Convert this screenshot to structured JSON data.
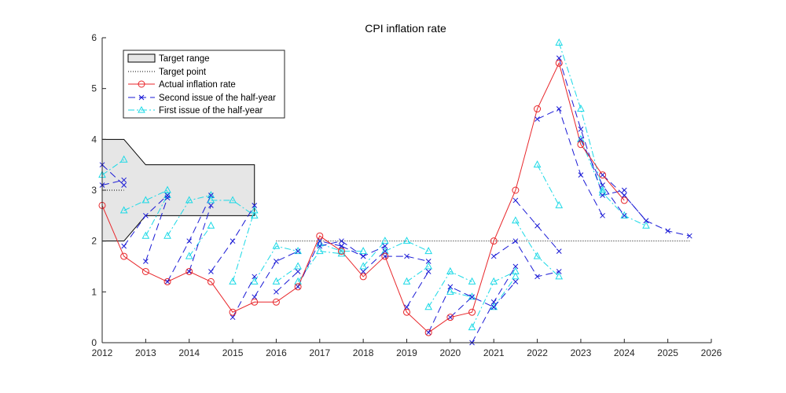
{
  "chart_data": {
    "type": "line",
    "title": "CPI inflation rate",
    "xlabel": "",
    "ylabel": "",
    "xlim": [
      2012,
      2026
    ],
    "ylim": [
      0,
      6
    ],
    "xticks": [
      "2012",
      "2013",
      "2014",
      "2015",
      "2016",
      "2017",
      "2018",
      "2019",
      "2020",
      "2021",
      "2022",
      "2023",
      "2024",
      "2025",
      "2026"
    ],
    "yticks": [
      "0",
      "1",
      "2",
      "3",
      "4",
      "5",
      "6"
    ],
    "grid": false,
    "legend_position": "top-left",
    "legend": {
      "target_range": "Target range",
      "target_point": "Target point",
      "actual": "Actual inflation rate",
      "second_issue": "Second issue of the half-year",
      "first_issue": "First issue of the half-year"
    },
    "colors": {
      "target_fill": "#e6e6e6",
      "actual": "#e8262a",
      "second_issue": "#1a1ad6",
      "first_issue": "#1ad9e6"
    },
    "target_range": {
      "x": [
        2012,
        2012.5,
        2013,
        2015.5
      ],
      "upper": [
        4.0,
        4.0,
        3.5,
        3.5
      ],
      "lower": [
        2.0,
        2.0,
        2.5,
        2.5
      ]
    },
    "target_point": [
      {
        "x": [
          2012,
          2012.5
        ],
        "y": [
          3.0,
          3.0
        ]
      },
      {
        "x": [
          2016,
          2025.5
        ],
        "y": [
          2.0,
          2.0
        ]
      }
    ],
    "actual": {
      "x": [
        2012,
        2012.5,
        2013,
        2013.5,
        2014,
        2014.5,
        2015,
        2015.5,
        2016,
        2016.5,
        2017,
        2017.5,
        2018,
        2018.5,
        2019,
        2019.5,
        2020,
        2020.5,
        2021,
        2021.5,
        2022,
        2022.5,
        2023,
        2023.5,
        2024
      ],
      "y": [
        2.7,
        1.7,
        1.4,
        1.2,
        1.4,
        1.2,
        0.6,
        0.8,
        0.8,
        1.1,
        2.1,
        1.8,
        1.3,
        1.7,
        0.6,
        0.2,
        0.5,
        0.6,
        2.0,
        3.0,
        4.6,
        5.5,
        3.9,
        3.3,
        2.8
      ]
    },
    "second_issue": [
      {
        "x": [
          2012,
          2012.5
        ],
        "y": [
          3.5,
          3.1
        ]
      },
      {
        "x": [
          2012,
          2012.5
        ],
        "y": [
          3.1,
          3.2
        ]
      },
      {
        "x": [
          2012.5,
          2013,
          2013.5
        ],
        "y": [
          1.9,
          2.5,
          2.9
        ]
      },
      {
        "x": [
          2013,
          2013.5
        ],
        "y": [
          1.6,
          2.85
        ]
      },
      {
        "x": [
          2013.5,
          2014,
          2014.5
        ],
        "y": [
          1.2,
          2.0,
          2.9
        ]
      },
      {
        "x": [
          2014,
          2014.5
        ],
        "y": [
          1.4,
          2.7
        ]
      },
      {
        "x": [
          2014.5,
          2015,
          2015.5
        ],
        "y": [
          1.4,
          2.0,
          2.7
        ]
      },
      {
        "x": [
          2015,
          2015.5
        ],
        "y": [
          0.5,
          1.3
        ]
      },
      {
        "x": [
          2015.5,
          2016,
          2016.5
        ],
        "y": [
          0.9,
          1.6,
          1.8
        ]
      },
      {
        "x": [
          2016,
          2016.5
        ],
        "y": [
          1.0,
          1.4
        ]
      },
      {
        "x": [
          2016.5,
          2017,
          2017.5
        ],
        "y": [
          1.1,
          2.0,
          1.9
        ]
      },
      {
        "x": [
          2017,
          2017.5,
          2018
        ],
        "y": [
          1.9,
          2.0,
          1.7
        ]
      },
      {
        "x": [
          2017.5,
          2018,
          2018.5
        ],
        "y": [
          1.9,
          1.7,
          1.9
        ]
      },
      {
        "x": [
          2018,
          2018.5
        ],
        "y": [
          1.4,
          1.8
        ]
      },
      {
        "x": [
          2018.5,
          2019,
          2019.5
        ],
        "y": [
          1.7,
          1.7,
          1.6
        ]
      },
      {
        "x": [
          2019,
          2019.5
        ],
        "y": [
          0.7,
          1.4
        ]
      },
      {
        "x": [
          2019.5,
          2020,
          2020.5
        ],
        "y": [
          0.2,
          1.1,
          0.9
        ]
      },
      {
        "x": [
          2020,
          2020.5,
          2021
        ],
        "y": [
          0.5,
          0.9,
          0.7
        ]
      },
      {
        "x": [
          2020.5,
          2021,
          2021.5
        ],
        "y": [
          0.0,
          0.8,
          1.5
        ]
      },
      {
        "x": [
          2021,
          2021.5
        ],
        "y": [
          0.7,
          1.2
        ]
      },
      {
        "x": [
          2021,
          2021.5,
          2022,
          2022.5
        ],
        "y": [
          1.7,
          2.0,
          1.3,
          1.4
        ]
      },
      {
        "x": [
          2021.5,
          2022,
          2022.5
        ],
        "y": [
          2.8,
          2.3,
          1.8
        ]
      },
      {
        "x": [
          2022,
          2022.5,
          2023,
          2023.5
        ],
        "y": [
          4.4,
          4.6,
          3.3,
          2.5
        ]
      },
      {
        "x": [
          2022.5,
          2023,
          2023.5,
          2024
        ],
        "y": [
          5.6,
          4.2,
          2.9,
          3.0
        ]
      },
      {
        "x": [
          2023,
          2023.5,
          2024
        ],
        "y": [
          4.0,
          3.1,
          2.5
        ]
      },
      {
        "x": [
          2023.5,
          2024,
          2024.5
        ],
        "y": [
          3.3,
          2.9,
          2.4
        ]
      },
      {
        "x": [
          2024,
          2024.5,
          2025,
          2025.5
        ],
        "y": [
          2.9,
          2.4,
          2.2,
          2.1
        ]
      }
    ],
    "first_issue": [
      {
        "x": [
          2012,
          2012.5
        ],
        "y": [
          3.3,
          3.6
        ]
      },
      {
        "x": [
          2012.5,
          2013,
          2013.5
        ],
        "y": [
          2.6,
          2.8,
          3.0
        ]
      },
      {
        "x": [
          2013,
          2013.5
        ],
        "y": [
          2.1,
          2.9
        ]
      },
      {
        "x": [
          2013.5,
          2014,
          2014.5
        ],
        "y": [
          2.1,
          2.8,
          2.9
        ]
      },
      {
        "x": [
          2014,
          2014.5
        ],
        "y": [
          1.7,
          2.3
        ]
      },
      {
        "x": [
          2014.5,
          2015,
          2015.5
        ],
        "y": [
          2.8,
          2.8,
          2.5
        ]
      },
      {
        "x": [
          2015,
          2015.5
        ],
        "y": [
          1.2,
          2.6
        ]
      },
      {
        "x": [
          2015.5,
          2016,
          2016.5
        ],
        "y": [
          1.2,
          1.9,
          1.8
        ]
      },
      {
        "x": [
          2016,
          2016.5
        ],
        "y": [
          1.2,
          1.5
        ]
      },
      {
        "x": [
          2016.5,
          2017,
          2017.5
        ],
        "y": [
          1.2,
          1.8,
          1.75
        ]
      },
      {
        "x": [
          2017,
          2017.5,
          2018
        ],
        "y": [
          1.95,
          1.8,
          1.8
        ]
      },
      {
        "x": [
          2018,
          2018.5
        ],
        "y": [
          1.5,
          2.0
        ]
      },
      {
        "x": [
          2018.5,
          2019,
          2019.5
        ],
        "y": [
          1.8,
          2.0,
          1.8
        ]
      },
      {
        "x": [
          2019,
          2019.5
        ],
        "y": [
          1.2,
          1.5
        ]
      },
      {
        "x": [
          2019.5,
          2020,
          2020.5
        ],
        "y": [
          0.7,
          1.4,
          1.2
        ]
      },
      {
        "x": [
          2020,
          2020.5
        ],
        "y": [
          1.0,
          0.9
        ]
      },
      {
        "x": [
          2020.5,
          2021,
          2021.5
        ],
        "y": [
          0.3,
          1.2,
          1.4
        ]
      },
      {
        "x": [
          2021,
          2021.5
        ],
        "y": [
          0.7,
          1.3
        ]
      },
      {
        "x": [
          2021.5,
          2022,
          2022.5
        ],
        "y": [
          2.4,
          1.7,
          1.3
        ]
      },
      {
        "x": [
          2022,
          2022.5
        ],
        "y": [
          3.5,
          2.7
        ]
      },
      {
        "x": [
          2022.5,
          2023,
          2023.5
        ],
        "y": [
          5.9,
          4.6,
          3.0
        ]
      },
      {
        "x": [
          2023,
          2023.5,
          2024,
          2024.5
        ],
        "y": [
          4.0,
          2.95,
          2.5,
          2.3
        ]
      }
    ]
  }
}
